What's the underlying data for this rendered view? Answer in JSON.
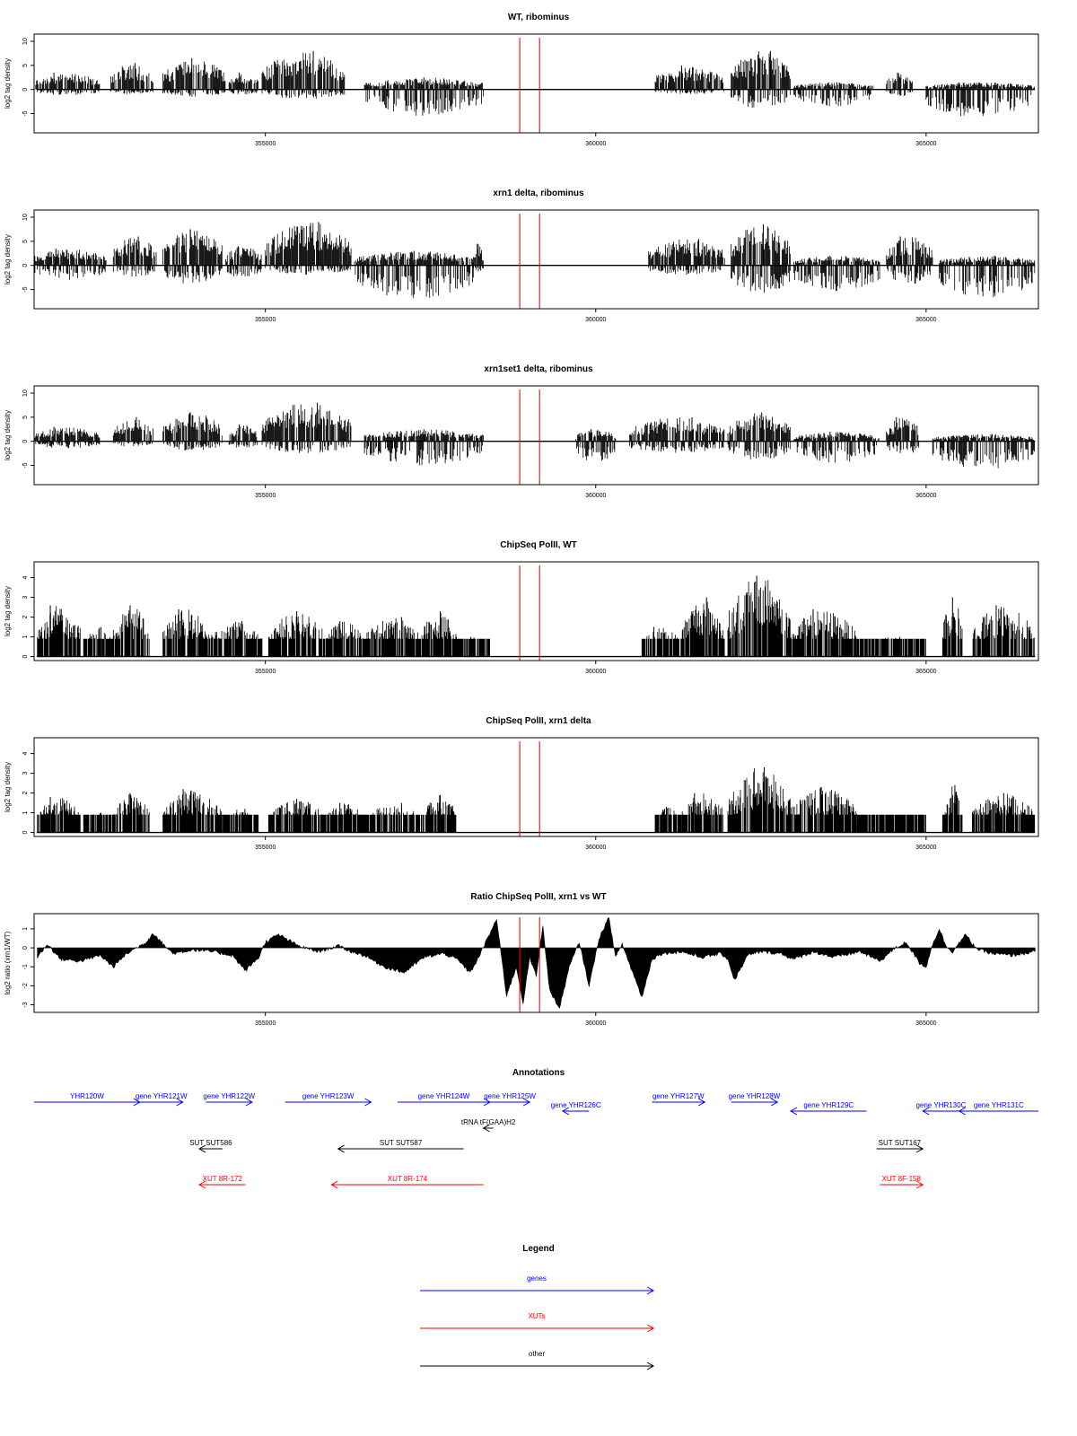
{
  "chart_data": [
    {
      "type": "bar",
      "title": "WT, ribominus",
      "ylabel": "log2 tag density",
      "xlim": [
        351500,
        366700
      ],
      "ylim": [
        -9,
        11.5
      ],
      "yticks": [
        -5,
        0,
        5,
        10
      ],
      "xticks": [
        355000,
        360000,
        365000
      ],
      "markers": [
        358850,
        359150
      ],
      "marker_color": "#ff0000",
      "segments": [
        {
          "start": 351500,
          "end": 352500,
          "pos": 3.5,
          "neg": -1.2
        },
        {
          "start": 352650,
          "end": 353300,
          "pos": 5.5,
          "neg": -1.0
        },
        {
          "start": 353450,
          "end": 354400,
          "pos": 6.5,
          "neg": -1.5
        },
        {
          "start": 354450,
          "end": 354900,
          "pos": 3.5,
          "neg": -1.2
        },
        {
          "start": 354950,
          "end": 356200,
          "pos": 8.0,
          "neg": -2.0
        },
        {
          "start": 356500,
          "end": 358300,
          "pos": 2.5,
          "neg": -5.5
        },
        {
          "start": 360900,
          "end": 361950,
          "pos": 5.0,
          "neg": -1.0
        },
        {
          "start": 362050,
          "end": 362950,
          "pos": 8.0,
          "neg": -4.0
        },
        {
          "start": 363000,
          "end": 364200,
          "pos": 1.5,
          "neg": -3.5
        },
        {
          "start": 364400,
          "end": 364800,
          "pos": 3.5,
          "neg": -1.5
        },
        {
          "start": 365000,
          "end": 366650,
          "pos": 1.5,
          "neg": -6.0
        }
      ]
    },
    {
      "type": "bar",
      "title": "xrn1 delta, ribominus",
      "ylabel": "log2 tag density",
      "xlim": [
        351500,
        366700
      ],
      "ylim": [
        -9,
        11.5
      ],
      "yticks": [
        -5,
        0,
        5,
        10
      ],
      "xticks": [
        355000,
        360000,
        365000
      ],
      "markers": [
        358850,
        359150
      ],
      "marker_color": "#ff0000",
      "segments": [
        {
          "start": 351500,
          "end": 352600,
          "pos": 3.5,
          "neg": -3.0
        },
        {
          "start": 352700,
          "end": 353350,
          "pos": 6.0,
          "neg": -2.5
        },
        {
          "start": 353450,
          "end": 354350,
          "pos": 7.5,
          "neg": -4.0
        },
        {
          "start": 354400,
          "end": 354950,
          "pos": 4.0,
          "neg": -3.0
        },
        {
          "start": 355000,
          "end": 356300,
          "pos": 9.0,
          "neg": -2.0
        },
        {
          "start": 356350,
          "end": 358150,
          "pos": 3.0,
          "neg": -7.0
        },
        {
          "start": 358150,
          "end": 358300,
          "pos": 4.5,
          "neg": -1.5
        },
        {
          "start": 360800,
          "end": 361950,
          "pos": 5.5,
          "neg": -2.0
        },
        {
          "start": 362050,
          "end": 362950,
          "pos": 8.5,
          "neg": -6.0
        },
        {
          "start": 363000,
          "end": 364300,
          "pos": 2.0,
          "neg": -5.5
        },
        {
          "start": 364400,
          "end": 365100,
          "pos": 6.0,
          "neg": -4.0
        },
        {
          "start": 365200,
          "end": 366650,
          "pos": 2.0,
          "neg": -7.0
        }
      ]
    },
    {
      "type": "bar",
      "title": "xrn1set1 delta, ribominus",
      "ylabel": "log2 tag density",
      "xlim": [
        351500,
        366700
      ],
      "ylim": [
        -9,
        11.5
      ],
      "yticks": [
        -5,
        0,
        5,
        10
      ],
      "xticks": [
        355000,
        360000,
        365000
      ],
      "markers": [
        358850,
        359150
      ],
      "marker_color": "#ff0000",
      "segments": [
        {
          "start": 351500,
          "end": 352500,
          "pos": 3.0,
          "neg": -1.5
        },
        {
          "start": 352700,
          "end": 353300,
          "pos": 5.0,
          "neg": -1.2
        },
        {
          "start": 353450,
          "end": 354350,
          "pos": 6.0,
          "neg": -2.0
        },
        {
          "start": 354450,
          "end": 354900,
          "pos": 3.5,
          "neg": -1.5
        },
        {
          "start": 354950,
          "end": 356300,
          "pos": 8.0,
          "neg": -2.5
        },
        {
          "start": 356500,
          "end": 358300,
          "pos": 2.5,
          "neg": -5.0
        },
        {
          "start": 359700,
          "end": 360300,
          "pos": 2.5,
          "neg": -4.5
        },
        {
          "start": 360500,
          "end": 361950,
          "pos": 5.0,
          "neg": -2.5
        },
        {
          "start": 362000,
          "end": 362950,
          "pos": 6.0,
          "neg": -4.0
        },
        {
          "start": 363000,
          "end": 364300,
          "pos": 2.0,
          "neg": -4.5
        },
        {
          "start": 364400,
          "end": 364900,
          "pos": 5.0,
          "neg": -3.0
        },
        {
          "start": 365100,
          "end": 366650,
          "pos": 1.5,
          "neg": -6.0
        }
      ]
    },
    {
      "type": "bar",
      "title": "ChipSeq PolII, WT",
      "ylabel": "log2 tag density",
      "xlim": [
        351500,
        366700
      ],
      "ylim": [
        -0.2,
        4.8
      ],
      "yticks": [
        0,
        1,
        2,
        3,
        4
      ],
      "xticks": [
        355000,
        360000,
        365000
      ],
      "markers": [
        358850,
        359150
      ],
      "marker_color": "#ff0000",
      "segments": [
        {
          "start": 351550,
          "end": 352200,
          "pos": 2.6,
          "neg": 0
        },
        {
          "start": 352250,
          "end": 352700,
          "pos": 1.5,
          "neg": 0
        },
        {
          "start": 352700,
          "end": 353250,
          "pos": 2.6,
          "neg": 0
        },
        {
          "start": 353450,
          "end": 354150,
          "pos": 2.4,
          "neg": 0
        },
        {
          "start": 354150,
          "end": 354950,
          "pos": 1.8,
          "neg": 0
        },
        {
          "start": 355050,
          "end": 355900,
          "pos": 2.3,
          "neg": 0
        },
        {
          "start": 355900,
          "end": 356500,
          "pos": 1.8,
          "neg": 0
        },
        {
          "start": 356500,
          "end": 357350,
          "pos": 2.0,
          "neg": 0
        },
        {
          "start": 357350,
          "end": 357900,
          "pos": 2.3,
          "neg": 0
        },
        {
          "start": 357900,
          "end": 358400,
          "pos": 1.0,
          "neg": 0
        },
        {
          "start": 360700,
          "end": 361300,
          "pos": 1.5,
          "neg": 0
        },
        {
          "start": 361300,
          "end": 361950,
          "pos": 3.0,
          "neg": 0
        },
        {
          "start": 362000,
          "end": 362950,
          "pos": 4.1,
          "neg": 0
        },
        {
          "start": 362950,
          "end": 363950,
          "pos": 2.4,
          "neg": 0
        },
        {
          "start": 363950,
          "end": 365000,
          "pos": 1.0,
          "neg": 0
        },
        {
          "start": 365250,
          "end": 365550,
          "pos": 3.0,
          "neg": 0
        },
        {
          "start": 365700,
          "end": 366650,
          "pos": 2.6,
          "neg": 0
        }
      ]
    },
    {
      "type": "bar",
      "title": "ChipSeq PolII, xrn1 delta",
      "ylabel": "log2 tag density",
      "xlim": [
        351500,
        366700
      ],
      "ylim": [
        -0.2,
        4.8
      ],
      "yticks": [
        0,
        1,
        2,
        3,
        4
      ],
      "xticks": [
        355000,
        360000,
        365000
      ],
      "markers": [
        358850,
        359150
      ],
      "marker_color": "#ff0000",
      "segments": [
        {
          "start": 351550,
          "end": 352200,
          "pos": 1.8,
          "neg": 0
        },
        {
          "start": 352250,
          "end": 352700,
          "pos": 1.0,
          "neg": 0
        },
        {
          "start": 352700,
          "end": 353250,
          "pos": 2.0,
          "neg": 0
        },
        {
          "start": 353450,
          "end": 354350,
          "pos": 2.2,
          "neg": 0
        },
        {
          "start": 354350,
          "end": 354900,
          "pos": 1.2,
          "neg": 0
        },
        {
          "start": 355050,
          "end": 355900,
          "pos": 1.7,
          "neg": 0
        },
        {
          "start": 355900,
          "end": 356500,
          "pos": 1.5,
          "neg": 0
        },
        {
          "start": 356500,
          "end": 357350,
          "pos": 1.5,
          "neg": 0
        },
        {
          "start": 357350,
          "end": 357900,
          "pos": 1.9,
          "neg": 0
        },
        {
          "start": 360900,
          "end": 361300,
          "pos": 1.3,
          "neg": 0
        },
        {
          "start": 361300,
          "end": 361950,
          "pos": 2.0,
          "neg": 0
        },
        {
          "start": 362000,
          "end": 362950,
          "pos": 3.3,
          "neg": 0
        },
        {
          "start": 362950,
          "end": 363950,
          "pos": 2.3,
          "neg": 0
        },
        {
          "start": 363950,
          "end": 365000,
          "pos": 0.6,
          "neg": 0
        },
        {
          "start": 365250,
          "end": 365550,
          "pos": 2.4,
          "neg": 0
        },
        {
          "start": 365700,
          "end": 366650,
          "pos": 2.0,
          "neg": 0
        }
      ]
    },
    {
      "type": "area",
      "title": "Ratio ChipSeq PolII, xrn1 vs WT",
      "ylabel": "log2 ratio (xrn1/WT)",
      "xlim": [
        351500,
        366700
      ],
      "ylim": [
        -3.4,
        1.8
      ],
      "yticks": [
        -3,
        -2,
        -1,
        0,
        1
      ],
      "xticks": [
        355000,
        360000,
        365000
      ],
      "markers": [
        358850,
        359150
      ],
      "marker_color": "#ff0000",
      "x": [
        351550,
        351700,
        351900,
        352200,
        352500,
        352700,
        352900,
        353200,
        353300,
        353450,
        353600,
        353900,
        354200,
        354500,
        354700,
        354900,
        355000,
        355200,
        355500,
        355800,
        356100,
        356300,
        356500,
        356800,
        357100,
        357400,
        357700,
        357900,
        358100,
        358200,
        358350,
        358500,
        358650,
        358800,
        358900,
        359000,
        359100,
        359200,
        359300,
        359450,
        359600,
        359750,
        359900,
        360050,
        360200,
        360300,
        360400,
        360550,
        360700,
        360850,
        361000,
        361300,
        361600,
        361900,
        362000,
        362100,
        362300,
        362500,
        362800,
        363000,
        363300,
        363600,
        364000,
        364300,
        364500,
        364700,
        364900,
        365000,
        365100,
        365200,
        365300,
        365400,
        365600,
        365700,
        365800,
        366000,
        366300,
        366650
      ],
      "values": [
        -0.5,
        0.2,
        -0.6,
        -0.7,
        -0.4,
        -1.0,
        -0.3,
        0.3,
        0.8,
        0.2,
        -0.3,
        -0.1,
        -0.2,
        -0.4,
        -1.2,
        -0.5,
        0.3,
        0.7,
        0.1,
        -0.2,
        0.1,
        -0.2,
        -0.4,
        -1.0,
        -1.3,
        -0.5,
        -0.3,
        -0.6,
        -1.3,
        -0.7,
        0.4,
        1.5,
        -2.5,
        -1.0,
        -2.9,
        -0.5,
        -1.5,
        1.2,
        -2.2,
        -3.2,
        -1.0,
        0.3,
        -2.0,
        0.5,
        1.6,
        -0.5,
        0.2,
        -1.2,
        -2.6,
        -0.6,
        -0.3,
        -0.2,
        -0.5,
        -0.3,
        -0.6,
        -1.7,
        -0.4,
        -0.2,
        -0.3,
        -0.6,
        -0.2,
        -0.5,
        -0.2,
        -0.7,
        -0.1,
        0.3,
        -0.8,
        -1.0,
        0.2,
        1.0,
        0.1,
        -0.2,
        0.7,
        0.2,
        -0.1,
        -0.3,
        -0.4,
        -0.2
      ]
    }
  ],
  "annotations": {
    "title": "Annotations",
    "genes": [
      {
        "label": "YHR120W",
        "start": 351500,
        "end": 353100,
        "strand": "+",
        "row": 0
      },
      {
        "label": "gene YHR121W",
        "start": 353100,
        "end": 353750,
        "strand": "+",
        "row": 0
      },
      {
        "label": "gene YHR122W",
        "start": 354100,
        "end": 354800,
        "strand": "+",
        "row": 0
      },
      {
        "label": "gene YHR123W",
        "start": 355300,
        "end": 356600,
        "strand": "+",
        "row": 0
      },
      {
        "label": "gene YHR124W",
        "start": 357000,
        "end": 358400,
        "strand": "+",
        "row": 0
      },
      {
        "label": "gene YHR125W",
        "start": 358400,
        "end": 359000,
        "strand": "+",
        "row": 0
      },
      {
        "label": "gene YHR126C",
        "start": 359500,
        "end": 359900,
        "strand": "-",
        "row": 1
      },
      {
        "label": "gene YHR127W",
        "start": 360850,
        "end": 361650,
        "strand": "+",
        "row": 0
      },
      {
        "label": "gene YHR128W",
        "start": 362050,
        "end": 362750,
        "strand": "+",
        "row": 0
      },
      {
        "label": "gene YHR129C",
        "start": 362950,
        "end": 364100,
        "strand": "-",
        "row": 1
      },
      {
        "label": "gene YHR130C",
        "start": 364950,
        "end": 365500,
        "strand": "-",
        "row": 1
      },
      {
        "label": "gene YHR131C",
        "start": 365500,
        "end": 366700,
        "strand": "-",
        "row": 1
      }
    ],
    "others": [
      {
        "label": "tRNA tF(GAA)H2",
        "start": 358300,
        "end": 358450,
        "strand": "-",
        "row": 2
      },
      {
        "label": "SUT SUT586",
        "start": 354000,
        "end": 354350,
        "strand": "-",
        "row": 3
      },
      {
        "label": "SUT SUT587",
        "start": 356100,
        "end": 358000,
        "strand": "-",
        "row": 3
      },
      {
        "label": "SUT SUT167",
        "start": 364250,
        "end": 364950,
        "strand": "+",
        "row": 3
      }
    ],
    "xuts": [
      {
        "label": "XUT 8R-172",
        "start": 354000,
        "end": 354700,
        "strand": "-",
        "row": 4
      },
      {
        "label": "XUT 8R-174",
        "start": 356000,
        "end": 358300,
        "strand": "-",
        "row": 4
      },
      {
        "label": "XUT 8F-158",
        "start": 364300,
        "end": 364950,
        "strand": "+",
        "row": 4
      }
    ]
  },
  "legend": {
    "title": "Legend",
    "items": [
      {
        "label": "genes",
        "color": "#0000ff"
      },
      {
        "label": "XUTs",
        "color": "#ff0000"
      },
      {
        "label": "other",
        "color": "#000000"
      }
    ]
  },
  "colors": {
    "gene": "#0000ff",
    "xut": "#ff0000",
    "other": "#000000",
    "marker": "#ff0000",
    "bar": "#000000"
  }
}
